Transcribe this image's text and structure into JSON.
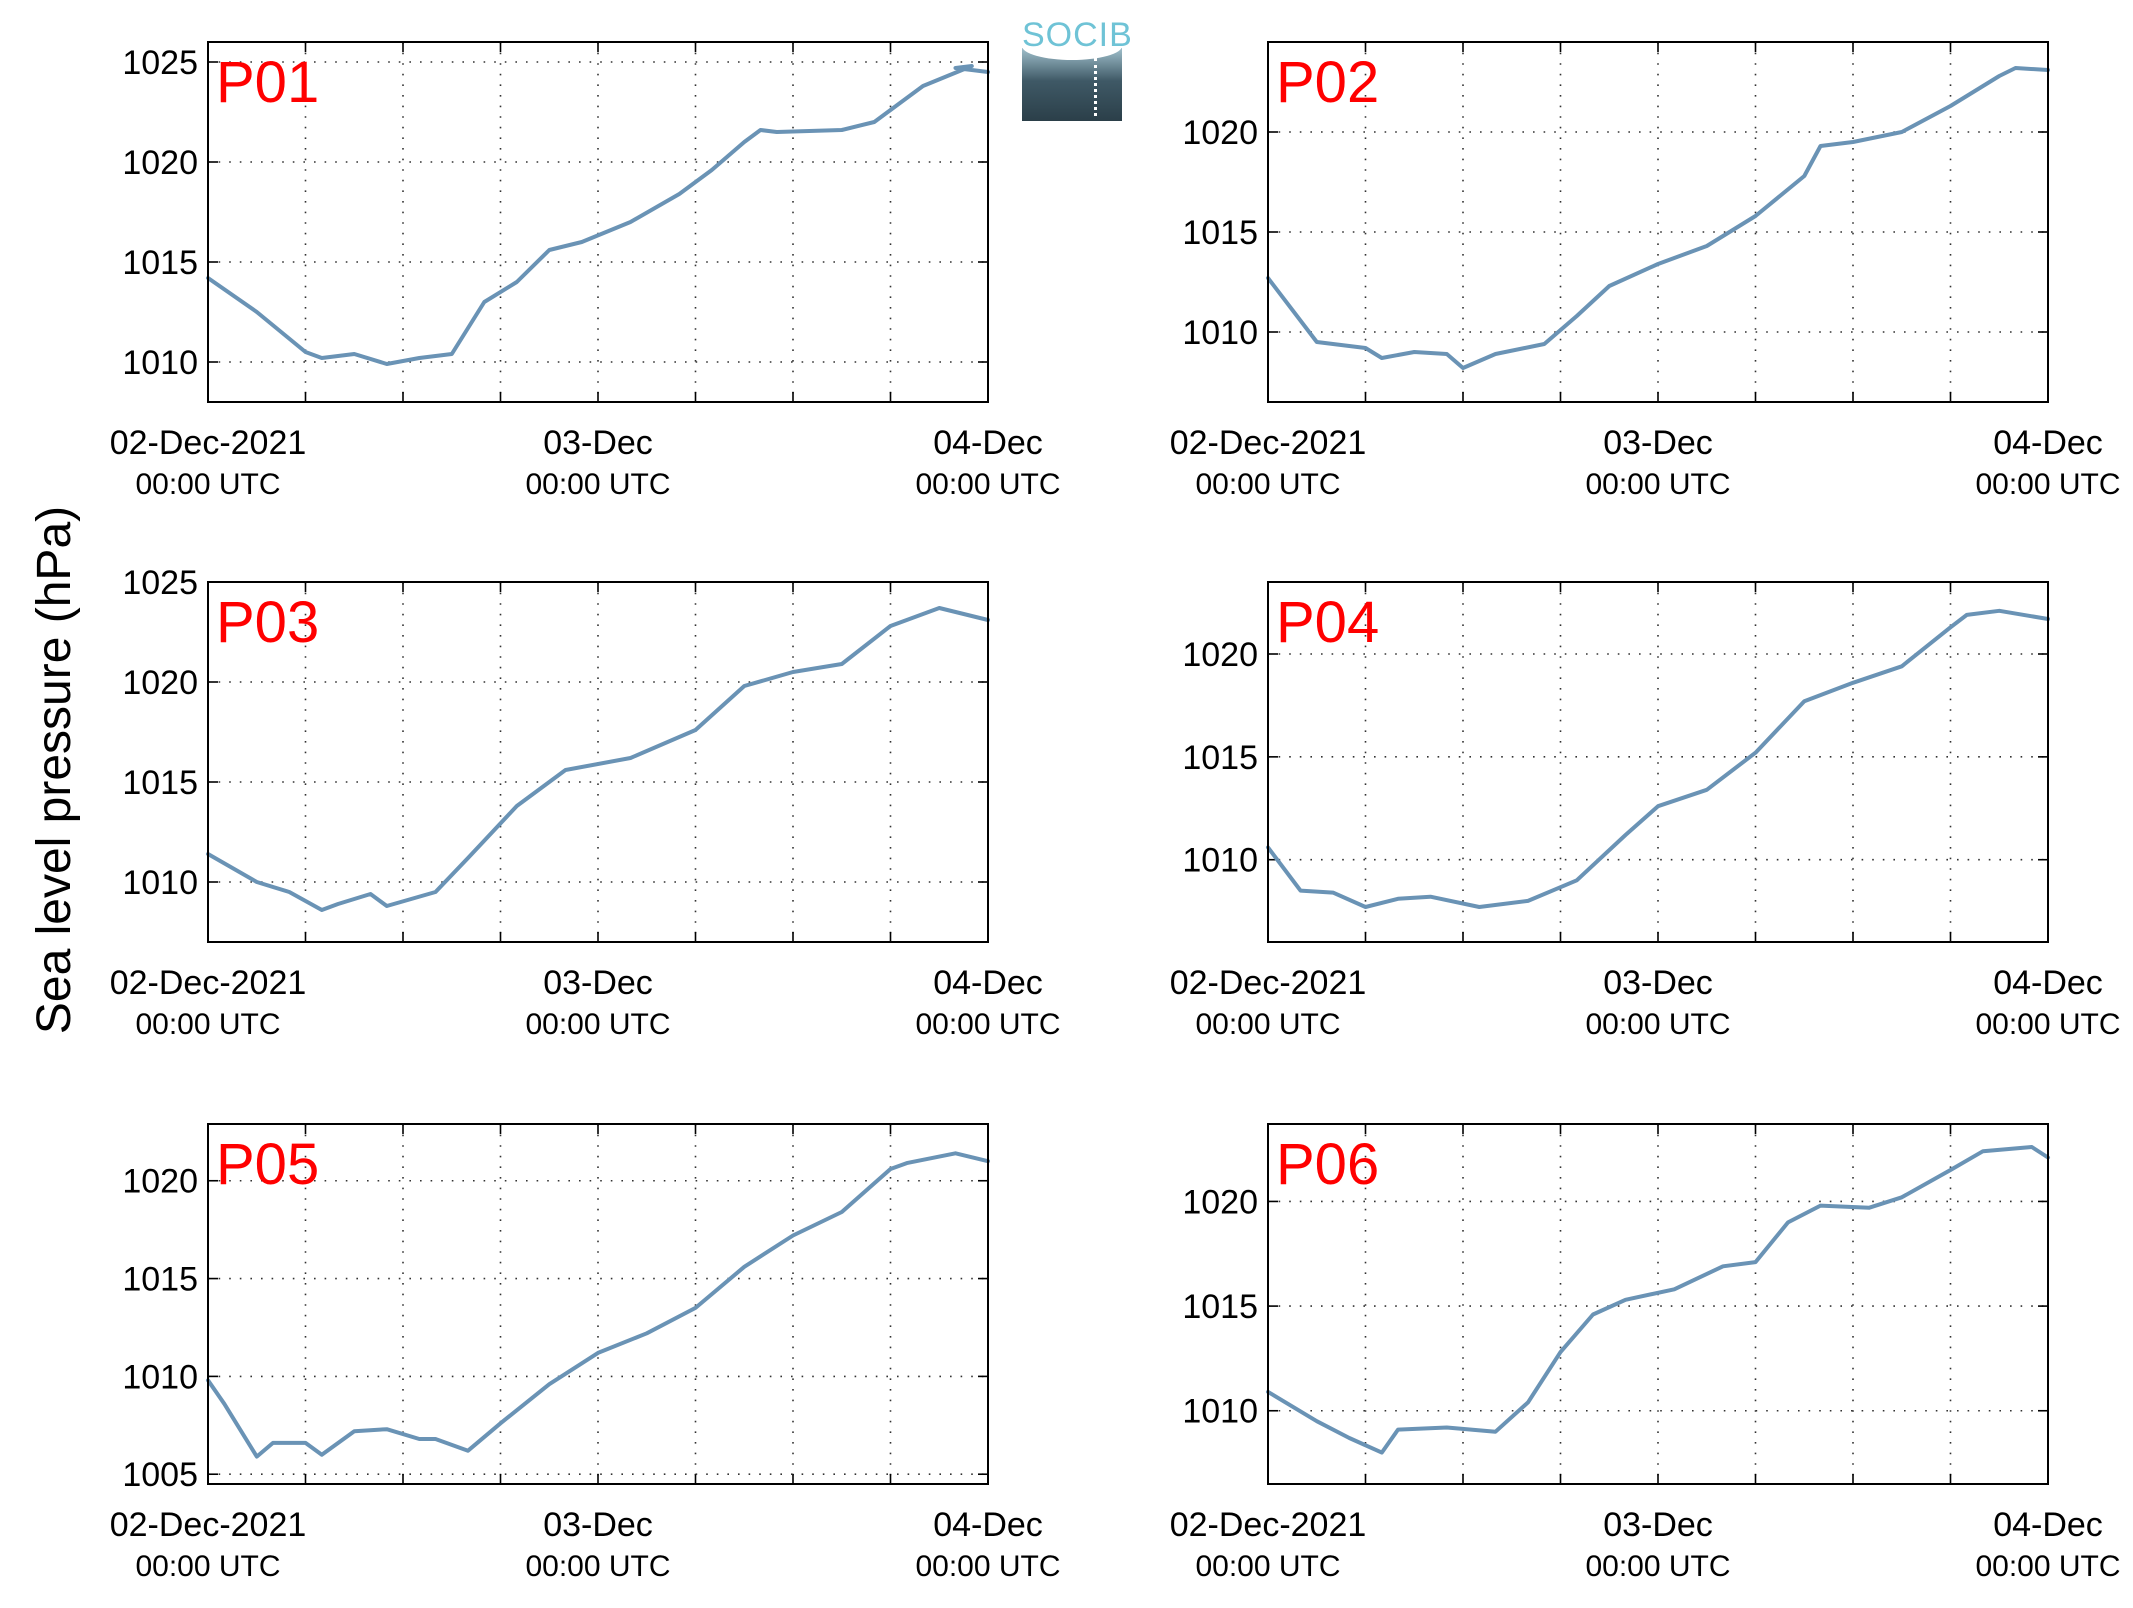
{
  "figure": {
    "ylabel": "Sea level pressure (hPa)",
    "logo_text": "SOCIB",
    "colors": {
      "line": "#6a93b5",
      "label": "#ff0000",
      "axis": "#000000",
      "grid": "#333333"
    }
  },
  "chart_data": [
    {
      "type": "line",
      "title": "P01",
      "xlabel": "",
      "ylabel": "",
      "xlim": [
        "02-Dec-2021 00:00",
        "04-Dec-2021 00:00"
      ],
      "ylim": [
        1008,
        1026
      ],
      "yticks": [
        1010,
        1015,
        1020,
        1025
      ],
      "xtick_labels": [
        {
          "date": "02-Dec-2021",
          "time": "00:00 UTC"
        },
        {
          "date": "03-Dec",
          "time": "00:00 UTC"
        },
        {
          "date": "04-Dec",
          "time": "00:00 UTC"
        }
      ],
      "grid": true,
      "series": [
        {
          "x": [
            "02-Dec-2021 00:00",
            "02-Dec-2021 03:00",
            "02-Dec-2021 06:00",
            "02-Dec-2021 07:00",
            "02-Dec-2021 09:00",
            "02-Dec-2021 11:00",
            "02-Dec-2021 13:00",
            "02-Dec-2021 15:00",
            "02-Dec-2021 17:00",
            "02-Dec-2021 19:00",
            "02-Dec-2021 21:00",
            "02-Dec-2021 23:00",
            "03-Dec-2021 02:00",
            "03-Dec-2021 05:00",
            "03-Dec-2021 07:00",
            "03-Dec-2021 09:00",
            "03-Dec-2021 10:00",
            "03-Dec-2021 11:00",
            "03-Dec-2021 15:00",
            "03-Dec-2021 17:00",
            "03-Dec-2021 20:00",
            "03-Dec-2021 23:00",
            "03-Dec-2021 22:00",
            "04-Dec-2021 00:00"
          ],
          "y": [
            1014.2,
            1012.5,
            1010.5,
            1010.2,
            1010.4,
            1009.9,
            1010.2,
            1010.4,
            1013.0,
            1014.0,
            1015.6,
            1016.0,
            1017.0,
            1018.4,
            1019.6,
            1021.0,
            1021.6,
            1021.5,
            1021.6,
            1022.0,
            1023.8,
            1024.8,
            1024.7,
            1024.5
          ]
        }
      ]
    },
    {
      "type": "line",
      "title": "P02",
      "xlabel": "",
      "ylabel": "",
      "xlim": [
        "02-Dec-2021 00:00",
        "04-Dec-2021 00:00"
      ],
      "ylim": [
        1006.5,
        1024.5
      ],
      "yticks": [
        1010,
        1015,
        1020
      ],
      "xtick_labels": [
        {
          "date": "02-Dec-2021",
          "time": "00:00 UTC"
        },
        {
          "date": "03-Dec",
          "time": "00:00 UTC"
        },
        {
          "date": "04-Dec",
          "time": "00:00 UTC"
        }
      ],
      "grid": true,
      "series": [
        {
          "x": [
            "02-Dec-2021 00:00",
            "02-Dec-2021 03:00",
            "02-Dec-2021 06:00",
            "02-Dec-2021 07:00",
            "02-Dec-2021 09:00",
            "02-Dec-2021 11:00",
            "02-Dec-2021 12:00",
            "02-Dec-2021 14:00",
            "02-Dec-2021 17:00",
            "02-Dec-2021 19:00",
            "02-Dec-2021 21:00",
            "03-Dec-2021 00:00",
            "03-Dec-2021 03:00",
            "03-Dec-2021 06:00",
            "03-Dec-2021 09:00",
            "03-Dec-2021 10:00",
            "03-Dec-2021 12:00",
            "03-Dec-2021 15:00",
            "03-Dec-2021 18:00",
            "03-Dec-2021 21:00",
            "03-Dec-2021 22:00",
            "04-Dec-2021 00:00"
          ],
          "y": [
            1012.7,
            1009.5,
            1009.2,
            1008.7,
            1009.0,
            1008.9,
            1008.2,
            1008.9,
            1009.4,
            1010.8,
            1012.3,
            1013.4,
            1014.3,
            1015.8,
            1017.8,
            1019.3,
            1019.5,
            1020.0,
            1021.3,
            1022.8,
            1023.2,
            1023.1
          ]
        }
      ]
    },
    {
      "type": "line",
      "title": "P03",
      "xlabel": "",
      "ylabel": "",
      "xlim": [
        "02-Dec-2021 00:00",
        "04-Dec-2021 00:00"
      ],
      "ylim": [
        1007,
        1025
      ],
      "yticks": [
        1010,
        1015,
        1020,
        1025
      ],
      "xtick_labels": [
        {
          "date": "02-Dec-2021",
          "time": "00:00 UTC"
        },
        {
          "date": "03-Dec",
          "time": "00:00 UTC"
        },
        {
          "date": "04-Dec",
          "time": "00:00 UTC"
        }
      ],
      "grid": true,
      "series": [
        {
          "x": [
            "02-Dec-2021 00:00",
            "02-Dec-2021 03:00",
            "02-Dec-2021 05:00",
            "02-Dec-2021 07:00",
            "02-Dec-2021 08:00",
            "02-Dec-2021 10:00",
            "02-Dec-2021 11:00",
            "02-Dec-2021 14:00",
            "02-Dec-2021 16:00",
            "02-Dec-2021 19:00",
            "02-Dec-2021 22:00",
            "03-Dec-2021 02:00",
            "03-Dec-2021 06:00",
            "03-Dec-2021 09:00",
            "03-Dec-2021 12:00",
            "03-Dec-2021 15:00",
            "03-Dec-2021 18:00",
            "03-Dec-2021 21:00",
            "03-Dec-2021 23:00",
            "04-Dec-2021 00:00"
          ],
          "y": [
            1011.4,
            1010.0,
            1009.5,
            1008.6,
            1008.9,
            1009.4,
            1008.8,
            1009.5,
            1011.2,
            1013.8,
            1015.6,
            1016.2,
            1017.6,
            1019.8,
            1020.5,
            1020.9,
            1022.8,
            1023.7,
            1023.3,
            1023.1
          ]
        }
      ]
    },
    {
      "type": "line",
      "title": "P04",
      "xlabel": "",
      "ylabel": "",
      "xlim": [
        "02-Dec-2021 00:00",
        "04-Dec-2021 00:00"
      ],
      "ylim": [
        1006,
        1023.5
      ],
      "yticks": [
        1010,
        1015,
        1020
      ],
      "xtick_labels": [
        {
          "date": "02-Dec-2021",
          "time": "00:00 UTC"
        },
        {
          "date": "03-Dec",
          "time": "00:00 UTC"
        },
        {
          "date": "04-Dec",
          "time": "00:00 UTC"
        }
      ],
      "grid": true,
      "series": [
        {
          "x": [
            "02-Dec-2021 00:00",
            "02-Dec-2021 02:00",
            "02-Dec-2021 04:00",
            "02-Dec-2021 06:00",
            "02-Dec-2021 08:00",
            "02-Dec-2021 10:00",
            "02-Dec-2021 13:00",
            "02-Dec-2021 16:00",
            "02-Dec-2021 19:00",
            "02-Dec-2021 22:00",
            "03-Dec-2021 00:00",
            "03-Dec-2021 03:00",
            "03-Dec-2021 06:00",
            "03-Dec-2021 09:00",
            "03-Dec-2021 12:00",
            "03-Dec-2021 15:00",
            "03-Dec-2021 18:00",
            "03-Dec-2021 19:00",
            "03-Dec-2021 21:00",
            "04-Dec-2021 00:00"
          ],
          "y": [
            1010.6,
            1008.5,
            1008.4,
            1007.7,
            1008.1,
            1008.2,
            1007.7,
            1008.0,
            1009.0,
            1011.2,
            1012.6,
            1013.4,
            1015.2,
            1017.7,
            1018.6,
            1019.4,
            1021.3,
            1021.9,
            1022.1,
            1021.7
          ]
        }
      ]
    },
    {
      "type": "line",
      "title": "P05",
      "xlabel": "",
      "ylabel": "",
      "xlim": [
        "02-Dec-2021 00:00",
        "04-Dec-2021 00:00"
      ],
      "ylim": [
        1004.5,
        1022.9
      ],
      "yticks": [
        1005,
        1010,
        1015,
        1020
      ],
      "xtick_labels": [
        {
          "date": "02-Dec-2021",
          "time": "00:00 UTC"
        },
        {
          "date": "03-Dec",
          "time": "00:00 UTC"
        },
        {
          "date": "04-Dec",
          "time": "00:00 UTC"
        }
      ],
      "grid": true,
      "series": [
        {
          "x": [
            "02-Dec-2021 00:00",
            "02-Dec-2021 01:00",
            "02-Dec-2021 03:00",
            "02-Dec-2021 04:00",
            "02-Dec-2021 06:00",
            "02-Dec-2021 07:00",
            "02-Dec-2021 09:00",
            "02-Dec-2021 11:00",
            "02-Dec-2021 13:00",
            "02-Dec-2021 14:00",
            "02-Dec-2021 16:00",
            "02-Dec-2021 18:00",
            "02-Dec-2021 21:00",
            "03-Dec-2021 00:00",
            "03-Dec-2021 03:00",
            "03-Dec-2021 06:00",
            "03-Dec-2021 09:00",
            "03-Dec-2021 12:00",
            "03-Dec-2021 15:00",
            "03-Dec-2021 18:00",
            "03-Dec-2021 19:00",
            "03-Dec-2021 22:00",
            "04-Dec-2021 00:00"
          ],
          "y": [
            1009.8,
            1008.6,
            1005.9,
            1006.6,
            1006.6,
            1006.0,
            1007.2,
            1007.3,
            1006.8,
            1006.8,
            1006.2,
            1007.6,
            1009.6,
            1011.2,
            1012.2,
            1013.5,
            1015.6,
            1017.2,
            1018.4,
            1020.6,
            1020.9,
            1021.4,
            1021.0
          ]
        }
      ]
    },
    {
      "type": "line",
      "title": "P06",
      "xlabel": "",
      "ylabel": "",
      "xlim": [
        "02-Dec-2021 00:00",
        "04-Dec-2021 00:00"
      ],
      "ylim": [
        1006.5,
        1023.7
      ],
      "yticks": [
        1010,
        1015,
        1020
      ],
      "xtick_labels": [
        {
          "date": "02-Dec-2021",
          "time": "00:00 UTC"
        },
        {
          "date": "03-Dec",
          "time": "00:00 UTC"
        },
        {
          "date": "04-Dec",
          "time": "00:00 UTC"
        }
      ],
      "grid": true,
      "series": [
        {
          "x": [
            "02-Dec-2021 00:00",
            "02-Dec-2021 03:00",
            "02-Dec-2021 05:00",
            "02-Dec-2021 07:00",
            "02-Dec-2021 08:00",
            "02-Dec-2021 11:00",
            "02-Dec-2021 14:00",
            "02-Dec-2021 16:00",
            "02-Dec-2021 18:00",
            "02-Dec-2021 20:00",
            "02-Dec-2021 22:00",
            "03-Dec-2021 01:00",
            "03-Dec-2021 04:00",
            "03-Dec-2021 06:00",
            "03-Dec-2021 08:00",
            "03-Dec-2021 10:00",
            "03-Dec-2021 13:00",
            "03-Dec-2021 15:00",
            "03-Dec-2021 18:00",
            "03-Dec-2021 20:00",
            "03-Dec-2021 23:00",
            "04-Dec-2021 00:00"
          ],
          "y": [
            1010.9,
            1009.5,
            1008.7,
            1008.0,
            1009.1,
            1009.2,
            1009.0,
            1010.4,
            1012.8,
            1014.6,
            1015.3,
            1015.8,
            1016.9,
            1017.1,
            1019.0,
            1019.8,
            1019.7,
            1020.2,
            1021.5,
            1022.4,
            1022.6,
            1022.1
          ]
        }
      ]
    }
  ]
}
